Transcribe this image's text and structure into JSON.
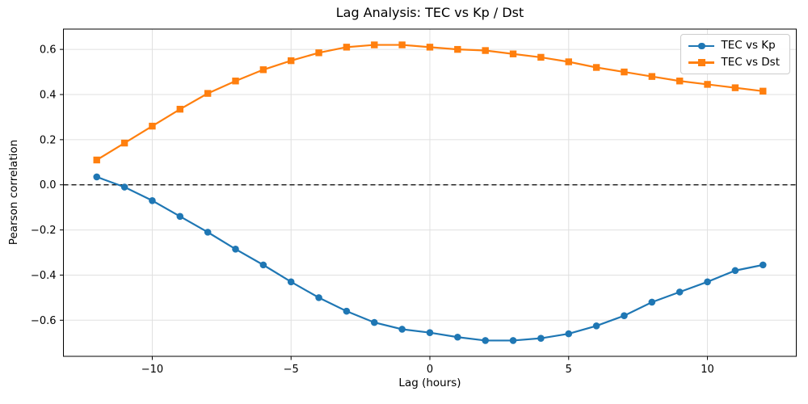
{
  "title": "Lag Analysis: TEC vs Kp / Dst",
  "chart_data": {
    "type": "line",
    "title": "Lag Analysis: TEC vs Kp / Dst",
    "xlabel": "Lag (hours)",
    "ylabel": "Pearson correlation",
    "x": [
      -12,
      -11,
      -10,
      -9,
      -8,
      -7,
      -6,
      -5,
      -4,
      -3,
      -2,
      -1,
      0,
      1,
      2,
      3,
      4,
      5,
      6,
      7,
      8,
      9,
      10,
      11,
      12
    ],
    "series": [
      {
        "name": "TEC vs Kp",
        "color": "#1f77b4",
        "marker": "circle",
        "values": [
          0.035,
          -0.01,
          -0.07,
          -0.14,
          -0.21,
          -0.285,
          -0.355,
          -0.43,
          -0.5,
          -0.56,
          -0.61,
          -0.64,
          -0.655,
          -0.675,
          -0.69,
          -0.69,
          -0.68,
          -0.66,
          -0.625,
          -0.58,
          -0.52,
          -0.475,
          -0.43,
          -0.38,
          -0.355
        ]
      },
      {
        "name": "TEC vs Dst",
        "color": "#ff7f0e",
        "marker": "square",
        "values": [
          0.11,
          0.185,
          0.26,
          0.335,
          0.405,
          0.46,
          0.51,
          0.55,
          0.585,
          0.61,
          0.62,
          0.62,
          0.61,
          0.6,
          0.595,
          0.58,
          0.565,
          0.545,
          0.52,
          0.5,
          0.48,
          0.46,
          0.445,
          0.43,
          0.415
        ]
      }
    ],
    "xlim": [
      -13.2,
      13.2
    ],
    "ylim": [
      -0.76,
      0.69
    ],
    "xticks": {
      "positions": [
        -10,
        -5,
        0,
        5,
        10
      ],
      "labels": [
        "−10",
        "−5",
        "0",
        "5",
        "10"
      ]
    },
    "yticks": {
      "positions": [
        -0.6,
        -0.4,
        -0.2,
        0,
        0.2,
        0.4,
        0.6
      ],
      "labels": [
        "−0.6",
        "−0.4",
        "−0.2",
        "0.0",
        "0.2",
        "0.4",
        "0.6"
      ]
    },
    "grid": true,
    "zero_line": {
      "style": "dashed",
      "color": "#000000"
    },
    "legend_position": "upper right"
  },
  "colors": {
    "background": "#ffffff",
    "grid": "#e0e0e0",
    "spine": "#000000",
    "series_blue": "#1f77b4",
    "series_orange": "#ff7f0e"
  }
}
